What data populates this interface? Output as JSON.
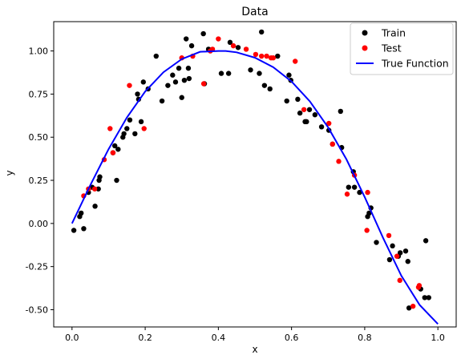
{
  "chart_data": {
    "type": "scatter",
    "title": "Data",
    "xlabel": "x",
    "ylabel": "y",
    "xlim": [
      -0.05,
      1.05
    ],
    "ylim": [
      -0.6,
      1.17
    ],
    "xticks": [
      "0.0",
      "0.2",
      "0.4",
      "0.6",
      "0.8",
      "1.0"
    ],
    "yticks": [
      "-0.50",
      "-0.25",
      "0.00",
      "0.25",
      "0.50",
      "0.75",
      "1.00"
    ],
    "grid": false,
    "legend_position": "top-right",
    "series": [
      {
        "name": "Train",
        "kind": "points",
        "color": "#000000",
        "points": [
          [
            0.005,
            -0.04
          ],
          [
            0.021,
            0.04
          ],
          [
            0.025,
            0.06
          ],
          [
            0.032,
            -0.03
          ],
          [
            0.045,
            0.18
          ],
          [
            0.055,
            0.21
          ],
          [
            0.063,
            0.1
          ],
          [
            0.072,
            0.2
          ],
          [
            0.074,
            0.25
          ],
          [
            0.076,
            0.27
          ],
          [
            0.112,
            0.41
          ],
          [
            0.117,
            0.45
          ],
          [
            0.122,
            0.25
          ],
          [
            0.126,
            0.43
          ],
          [
            0.139,
            0.5
          ],
          [
            0.142,
            0.52
          ],
          [
            0.15,
            0.55
          ],
          [
            0.158,
            0.6
          ],
          [
            0.172,
            0.52
          ],
          [
            0.179,
            0.75
          ],
          [
            0.182,
            0.72
          ],
          [
            0.189,
            0.59
          ],
          [
            0.195,
            0.82
          ],
          [
            0.208,
            0.78
          ],
          [
            0.23,
            0.97
          ],
          [
            0.246,
            0.71
          ],
          [
            0.262,
            0.8
          ],
          [
            0.275,
            0.86
          ],
          [
            0.283,
            0.82
          ],
          [
            0.292,
            0.9
          ],
          [
            0.3,
            0.73
          ],
          [
            0.307,
            0.83
          ],
          [
            0.312,
            1.07
          ],
          [
            0.318,
            0.9
          ],
          [
            0.32,
            0.84
          ],
          [
            0.327,
            1.03
          ],
          [
            0.359,
            1.1
          ],
          [
            0.362,
            0.81
          ],
          [
            0.373,
            1.01
          ],
          [
            0.408,
            0.87
          ],
          [
            0.428,
            0.87
          ],
          [
            0.432,
            1.05
          ],
          [
            0.454,
            1.02
          ],
          [
            0.488,
            0.89
          ],
          [
            0.512,
            0.87
          ],
          [
            0.518,
            1.11
          ],
          [
            0.526,
            0.8
          ],
          [
            0.541,
            0.78
          ],
          [
            0.562,
            0.97
          ],
          [
            0.587,
            0.71
          ],
          [
            0.593,
            0.86
          ],
          [
            0.598,
            0.83
          ],
          [
            0.617,
            0.72
          ],
          [
            0.623,
            0.64
          ],
          [
            0.637,
            0.59
          ],
          [
            0.641,
            0.59
          ],
          [
            0.649,
            0.66
          ],
          [
            0.664,
            0.63
          ],
          [
            0.682,
            0.56
          ],
          [
            0.702,
            0.54
          ],
          [
            0.712,
            0.46
          ],
          [
            0.734,
            0.65
          ],
          [
            0.737,
            0.44
          ],
          [
            0.756,
            0.21
          ],
          [
            0.769,
            0.3
          ],
          [
            0.772,
            0.21
          ],
          [
            0.786,
            0.18
          ],
          [
            0.808,
            0.04
          ],
          [
            0.812,
            0.06
          ],
          [
            0.817,
            0.09
          ],
          [
            0.832,
            -0.11
          ],
          [
            0.868,
            -0.21
          ],
          [
            0.876,
            -0.13
          ],
          [
            0.892,
            -0.19
          ],
          [
            0.897,
            -0.17
          ],
          [
            0.912,
            -0.16
          ],
          [
            0.918,
            -0.22
          ],
          [
            0.921,
            -0.49
          ],
          [
            0.953,
            -0.38
          ],
          [
            0.964,
            -0.43
          ],
          [
            0.967,
            -0.1
          ],
          [
            0.975,
            -0.43
          ]
        ]
      },
      {
        "name": "Test",
        "kind": "points",
        "color": "#ff0000",
        "points": [
          [
            0.032,
            0.16
          ],
          [
            0.045,
            0.2
          ],
          [
            0.062,
            0.2
          ],
          [
            0.088,
            0.37
          ],
          [
            0.104,
            0.55
          ],
          [
            0.112,
            0.41
          ],
          [
            0.157,
            0.8
          ],
          [
            0.197,
            0.55
          ],
          [
            0.3,
            0.96
          ],
          [
            0.33,
            0.97
          ],
          [
            0.36,
            0.81
          ],
          [
            0.378,
            1.0
          ],
          [
            0.384,
            1.01
          ],
          [
            0.4,
            1.07
          ],
          [
            0.441,
            1.03
          ],
          [
            0.476,
            1.01
          ],
          [
            0.502,
            0.98
          ],
          [
            0.518,
            0.97
          ],
          [
            0.532,
            0.97
          ],
          [
            0.544,
            0.96
          ],
          [
            0.55,
            0.96
          ],
          [
            0.61,
            0.94
          ],
          [
            0.634,
            0.66
          ],
          [
            0.702,
            0.58
          ],
          [
            0.712,
            0.46
          ],
          [
            0.729,
            0.36
          ],
          [
            0.752,
            0.17
          ],
          [
            0.772,
            0.28
          ],
          [
            0.806,
            -0.04
          ],
          [
            0.808,
            0.18
          ],
          [
            0.866,
            -0.07
          ],
          [
            0.888,
            -0.19
          ],
          [
            0.896,
            -0.33
          ],
          [
            0.932,
            -0.48
          ],
          [
            0.947,
            -0.37
          ],
          [
            0.949,
            -0.36
          ]
        ]
      },
      {
        "name": "True Function",
        "kind": "line",
        "color": "#0000ff",
        "function_note_omitted": true,
        "x": [
          0.0,
          0.05,
          0.1,
          0.15,
          0.2,
          0.25,
          0.3,
          0.35,
          0.4,
          0.42,
          0.45,
          0.5,
          0.55,
          0.6,
          0.65,
          0.7,
          0.75,
          0.8,
          0.85,
          0.9,
          0.95,
          1.0
        ],
        "y": [
          0.0,
          0.222,
          0.431,
          0.614,
          0.765,
          0.877,
          0.953,
          0.995,
          1.0,
          1.0,
          0.992,
          0.961,
          0.906,
          0.823,
          0.708,
          0.557,
          0.372,
          0.153,
          -0.083,
          -0.303,
          -0.472,
          -0.583
        ]
      }
    ]
  }
}
